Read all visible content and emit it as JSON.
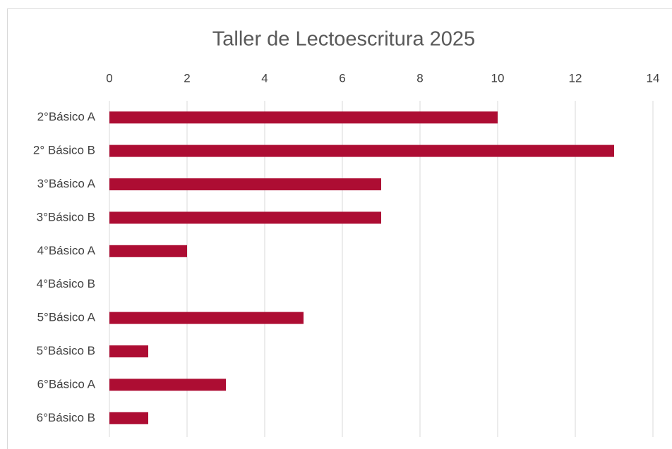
{
  "chart_data": {
    "type": "bar",
    "orientation": "horizontal",
    "title": "Taller de Lectoescritura 2025",
    "categories": [
      "2°Básico A",
      "2° Básico B",
      "3°Básico A",
      "3°Básico B",
      "4°Básico A",
      "4°Básico B",
      "5°Básico A",
      "5°Básico B",
      "6°Básico A",
      "6°Básico B"
    ],
    "values": [
      10,
      13,
      7,
      7,
      2,
      0,
      5,
      1,
      3,
      1
    ],
    "color": "#ad0d33",
    "xlim": [
      0,
      14
    ],
    "xticks": [
      0,
      2,
      4,
      6,
      8,
      10,
      12,
      14
    ],
    "grid": true
  }
}
